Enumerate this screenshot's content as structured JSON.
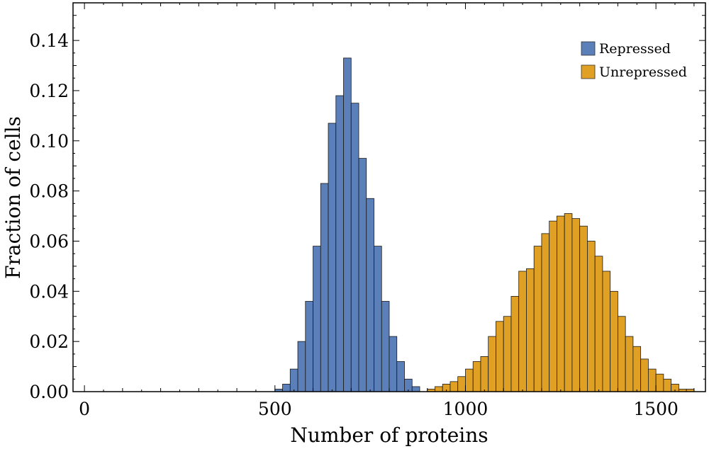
{
  "chart_data": {
    "type": "bar",
    "xlabel": "Number of proteins",
    "ylabel": "Fraction of cells",
    "xlim": [
      -30,
      1630
    ],
    "ylim": [
      0,
      0.155
    ],
    "x_ticks": [
      {
        "value": 0,
        "label": "0"
      },
      {
        "value": 500,
        "label": "500"
      },
      {
        "value": 1000,
        "label": "1000"
      },
      {
        "value": 1500,
        "label": "1500"
      }
    ],
    "y_ticks": [
      {
        "value": 0.0,
        "label": "0.00"
      },
      {
        "value": 0.02,
        "label": "0.02"
      },
      {
        "value": 0.04,
        "label": "0.04"
      },
      {
        "value": 0.06,
        "label": "0.06"
      },
      {
        "value": 0.08,
        "label": "0.08"
      },
      {
        "value": 0.1,
        "label": "0.10"
      },
      {
        "value": 0.12,
        "label": "0.12"
      },
      {
        "value": 0.14,
        "label": "0.14"
      }
    ],
    "bin_width": 20,
    "legend_position": "top-right",
    "series": [
      {
        "name": "Repressed",
        "color": "#5b7fb8",
        "bin_starts": [
          500,
          520,
          540,
          560,
          580,
          600,
          620,
          640,
          660,
          680,
          700,
          720,
          740,
          760,
          780,
          800,
          820,
          840,
          860
        ],
        "values": [
          0.001,
          0.003,
          0.009,
          0.02,
          0.036,
          0.058,
          0.083,
          0.107,
          0.118,
          0.133,
          0.115,
          0.093,
          0.077,
          0.058,
          0.036,
          0.022,
          0.012,
          0.005,
          0.002
        ]
      },
      {
        "name": "Unrepressed",
        "color": "#e0a024",
        "bin_starts": [
          900,
          920,
          940,
          960,
          980,
          1000,
          1020,
          1040,
          1060,
          1080,
          1100,
          1120,
          1140,
          1160,
          1180,
          1200,
          1220,
          1240,
          1260,
          1280,
          1300,
          1320,
          1340,
          1360,
          1380,
          1400,
          1420,
          1440,
          1460,
          1480,
          1500,
          1520,
          1540,
          1560,
          1580
        ],
        "values": [
          0.001,
          0.002,
          0.003,
          0.004,
          0.006,
          0.009,
          0.012,
          0.014,
          0.022,
          0.028,
          0.03,
          0.038,
          0.048,
          0.049,
          0.058,
          0.063,
          0.068,
          0.07,
          0.071,
          0.069,
          0.066,
          0.06,
          0.054,
          0.048,
          0.04,
          0.03,
          0.022,
          0.018,
          0.013,
          0.009,
          0.007,
          0.005,
          0.003,
          0.001,
          0.001
        ]
      }
    ]
  }
}
